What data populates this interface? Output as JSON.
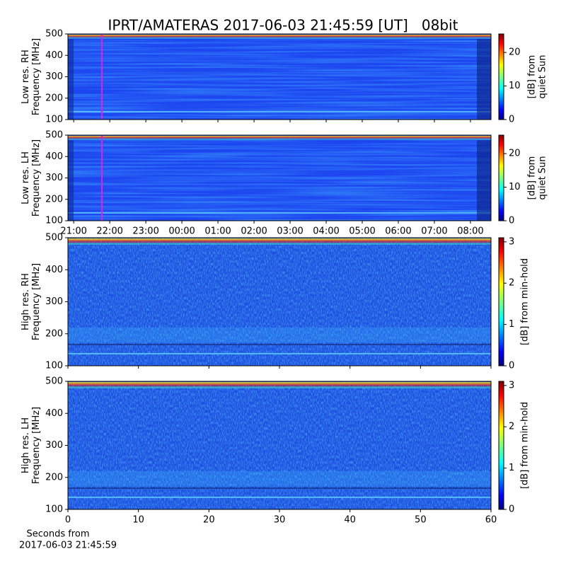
{
  "title": "IPRT/AMATERAS 2017-06-03 21:45:59 [UT]   08bit",
  "chart_data": [
    {
      "type": "heatmap",
      "ylabel": [
        "Low res. RH",
        "Frequency [MHz]"
      ],
      "ylim": [
        100,
        500
      ],
      "yticks": [
        100,
        200,
        300,
        400,
        500
      ],
      "xlim": [
        20.84,
        32.57
      ],
      "xticks": [
        {
          "value": 21,
          "label": "21:00"
        },
        {
          "value": 22,
          "label": "22:00"
        },
        {
          "value": 23,
          "label": "23:00"
        },
        {
          "value": 24,
          "label": "00:00"
        },
        {
          "value": 25,
          "label": "01:00"
        },
        {
          "value": 26,
          "label": "02:00"
        },
        {
          "value": 27,
          "label": "03:00"
        },
        {
          "value": 28,
          "label": "04:00"
        },
        {
          "value": 29,
          "label": "05:00"
        },
        {
          "value": 30,
          "label": "06:00"
        },
        {
          "value": 31,
          "label": "07:00"
        },
        {
          "value": 32,
          "label": "08:00"
        }
      ],
      "show_xtick_labels": false,
      "colorbar": {
        "label": [
          "[dB] from",
          "quiet Sun"
        ],
        "lim": [
          0,
          25.5
        ],
        "ticks": [
          0,
          10,
          20
        ]
      }
    },
    {
      "type": "heatmap",
      "ylabel": [
        "Low res. LH",
        "Frequency [MHz]"
      ],
      "ylim": [
        100,
        500
      ],
      "yticks": [
        100,
        200,
        300,
        400,
        500
      ],
      "xlim": [
        20.84,
        32.57
      ],
      "xticks": [
        {
          "value": 21,
          "label": "21:00"
        },
        {
          "value": 22,
          "label": "22:00"
        },
        {
          "value": 23,
          "label": "23:00"
        },
        {
          "value": 24,
          "label": "00:00"
        },
        {
          "value": 25,
          "label": "01:00"
        },
        {
          "value": 26,
          "label": "02:00"
        },
        {
          "value": 27,
          "label": "03:00"
        },
        {
          "value": 28,
          "label": "04:00"
        },
        {
          "value": 29,
          "label": "05:00"
        },
        {
          "value": 30,
          "label": "06:00"
        },
        {
          "value": 31,
          "label": "07:00"
        },
        {
          "value": 32,
          "label": "08:00"
        }
      ],
      "show_xtick_labels": true,
      "colorbar": {
        "label": [
          "[dB] from",
          "quiet Sun"
        ],
        "lim": [
          0,
          25.5
        ],
        "ticks": [
          0,
          10,
          20
        ]
      }
    },
    {
      "type": "heatmap",
      "ylabel": [
        "High res. RH",
        "Frequency [MHz]"
      ],
      "ylim": [
        100,
        500
      ],
      "yticks": [
        100,
        200,
        300,
        400,
        500
      ],
      "xlim": [
        0,
        60
      ],
      "xticks": [
        0,
        10,
        20,
        30,
        40,
        50,
        60
      ],
      "show_xtick_labels": false,
      "colorbar": {
        "label": [
          "[dB] from min-hold"
        ],
        "lim": [
          0,
          3.1
        ],
        "ticks": [
          0,
          1,
          2,
          3
        ]
      }
    },
    {
      "type": "heatmap",
      "ylabel": [
        "High res. LH",
        "Frequency [MHz]"
      ],
      "ylim": [
        100,
        500
      ],
      "yticks": [
        100,
        200,
        300,
        400,
        500
      ],
      "xlim": [
        0,
        60
      ],
      "xticks": [
        0,
        10,
        20,
        30,
        40,
        50,
        60
      ],
      "show_xtick_labels": true,
      "xlabel": [
        "Seconds from",
        "2017-06-03 21:45:59"
      ],
      "colorbar": {
        "label": [
          "[dB] from min-hold"
        ],
        "lim": [
          0,
          3.1
        ],
        "ticks": [
          0,
          1,
          2,
          3
        ]
      }
    }
  ]
}
